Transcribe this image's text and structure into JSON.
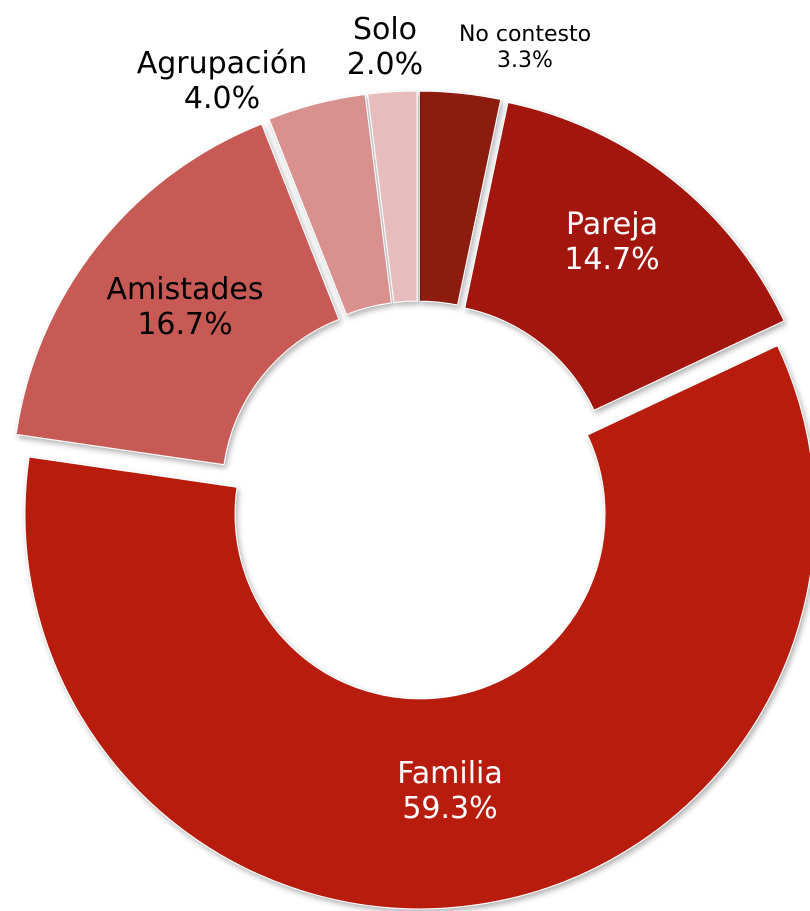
{
  "chart_data": {
    "type": "donut",
    "categories": [
      "No contesto",
      "Pareja",
      "Familia",
      "Amistades",
      "Agrupación",
      "Solo"
    ],
    "values": [
      3.3,
      14.7,
      59.3,
      16.7,
      4.0,
      2.0
    ],
    "value_labels": [
      "3.3%",
      "14.7%",
      "59.3%",
      "16.7%",
      "4.0%",
      "2.0%"
    ],
    "colors": [
      "#8c1a10",
      "#a3190f",
      "#b81d0f",
      "#c85a56",
      "#d8918f",
      "#e6bcbc"
    ]
  }
}
